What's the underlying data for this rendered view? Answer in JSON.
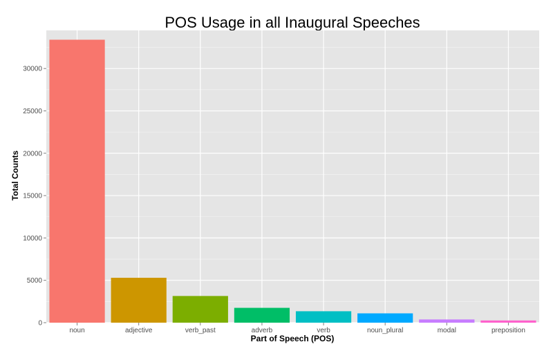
{
  "chart_data": {
    "type": "bar",
    "title": "POS Usage in all Inaugural Speeches",
    "xlabel": "Part of Speech (POS)",
    "ylabel": "Total Counts",
    "categories": [
      "noun",
      "adjective",
      "verb_past",
      "adverb",
      "verb",
      "noun_plural",
      "modal",
      "preposition"
    ],
    "values": [
      33400,
      5300,
      3150,
      1750,
      1350,
      1100,
      380,
      260
    ],
    "colors": [
      "#F8766D",
      "#CD9600",
      "#7CAE00",
      "#00BE67",
      "#00BFC4",
      "#00A9FF",
      "#C77CFF",
      "#FF61CC"
    ],
    "ylim": [
      0,
      34500
    ],
    "yticks": [
      0,
      5000,
      10000,
      15000,
      20000,
      25000,
      30000
    ],
    "ytick_labels": [
      "0",
      "5000",
      "10000",
      "15000",
      "20000",
      "25000",
      "30000"
    ],
    "grid": true,
    "legend": "none",
    "panel_background": "#E5E5E5",
    "grid_color": "#FFFFFF"
  }
}
